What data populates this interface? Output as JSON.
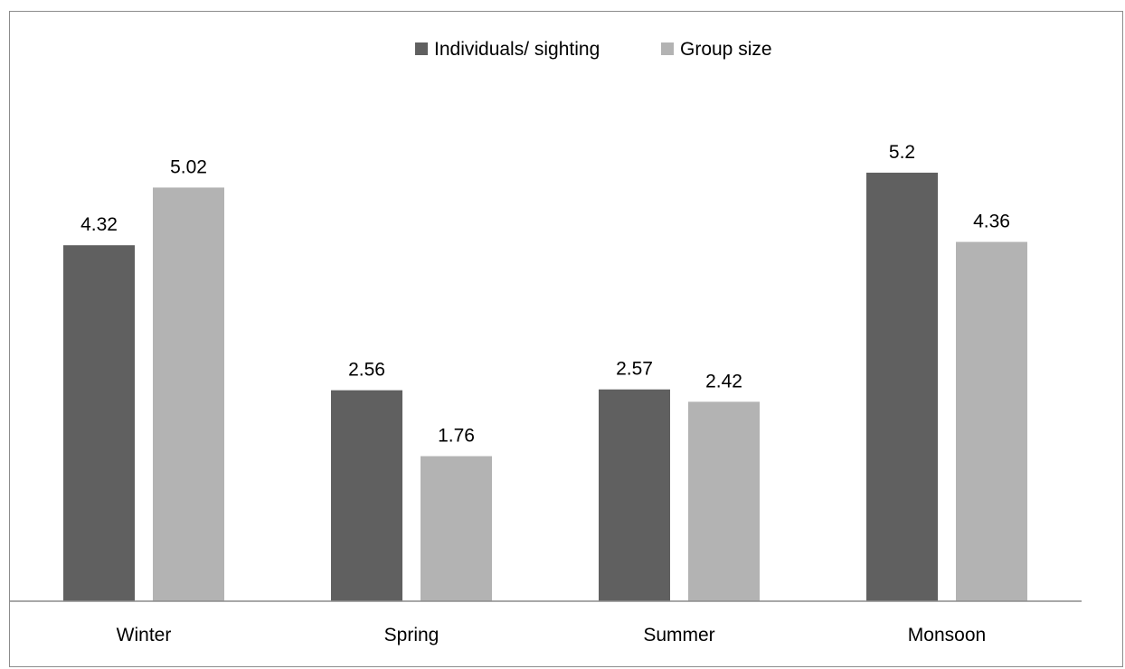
{
  "chart_data": {
    "type": "bar",
    "categories": [
      "Winter",
      "Spring",
      "Summer",
      "Monsoon"
    ],
    "series": [
      {
        "name": "Individuals/ sighting",
        "values": [
          4.32,
          2.56,
          2.57,
          5.2
        ],
        "color": "#606060"
      },
      {
        "name": "Group size",
        "values": [
          5.02,
          1.76,
          2.42,
          4.36
        ],
        "color": "#b3b3b3"
      }
    ],
    "ylim": [
      0,
      6
    ],
    "grid": false,
    "legend_position": "top-center",
    "data_labels": true
  }
}
